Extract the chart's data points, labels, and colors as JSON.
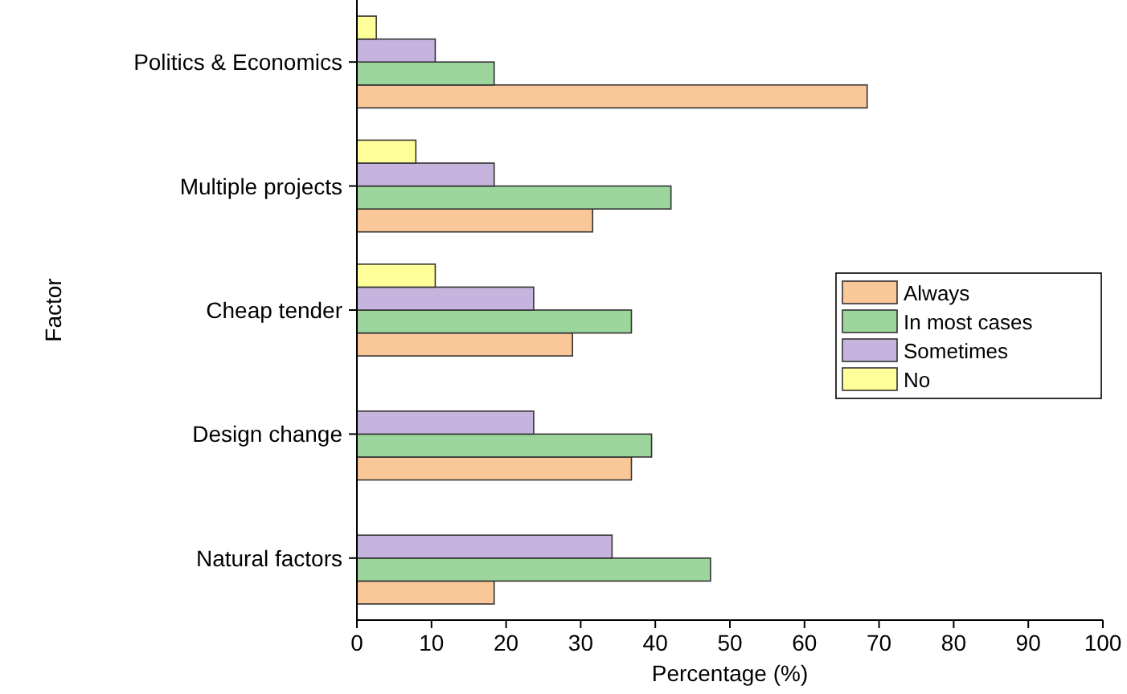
{
  "chart_data": {
    "type": "bar",
    "orientation": "horizontal",
    "xlabel": "Percentage (%)",
    "ylabel": "Factor",
    "categories": [
      "Politics & Economics",
      "Multiple projects",
      "Cheap tender",
      "Design change",
      "Natural factors"
    ],
    "series": [
      {
        "name": "Always",
        "color": "#fac898",
        "values": [
          68.4,
          31.6,
          28.9,
          36.8,
          18.4
        ]
      },
      {
        "name": "In most cases",
        "color": "#9cd69c",
        "values": [
          18.4,
          42.1,
          36.8,
          39.5,
          47.4
        ]
      },
      {
        "name": "Sometimes",
        "color": "#c6b4de",
        "values": [
          10.5,
          18.4,
          23.7,
          23.7,
          34.2
        ]
      },
      {
        "name": "No",
        "color": "#ffff99",
        "values": [
          2.6,
          7.9,
          10.5,
          0,
          0
        ]
      }
    ],
    "xlim": [
      0,
      100
    ],
    "xticks": [
      0,
      10,
      20,
      30,
      40,
      50,
      60,
      70,
      80,
      90,
      100
    ],
    "grid": false,
    "legend": "right"
  }
}
